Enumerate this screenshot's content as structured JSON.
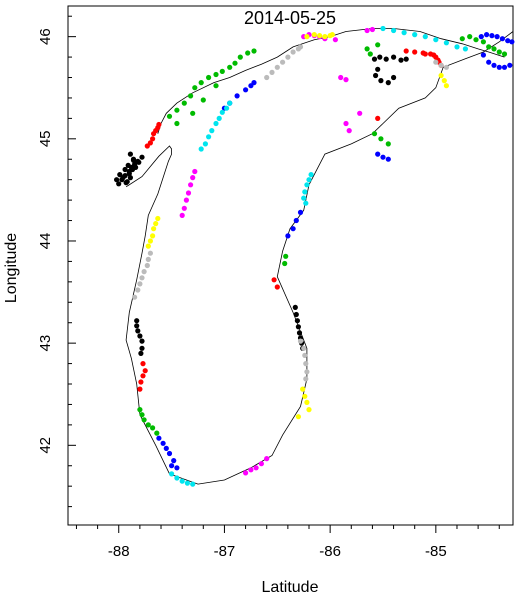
{
  "chart_data": {
    "type": "scatter",
    "title": "2014-05-25",
    "xlabel": "Latitude",
    "ylabel": "Longitude",
    "xlim": [
      -88.48,
      -84.27
    ],
    "ylim": [
      41.22,
      46.3
    ],
    "x_ticks": [
      -88,
      -87,
      -86,
      -85
    ],
    "y_ticks": [
      42,
      43,
      44,
      45,
      46
    ],
    "x_tick_labels": [
      "-88",
      "-87",
      "-86",
      "-85"
    ],
    "y_tick_labels": [
      "42",
      "43",
      "44",
      "45",
      "46"
    ],
    "grid": false,
    "legend": "none",
    "shoreline_color": "#000000",
    "shoreline": [
      [
        -87.93,
        44.53
      ],
      [
        -87.78,
        44.63
      ],
      [
        -87.62,
        44.83
      ],
      [
        -87.52,
        44.93
      ],
      [
        -87.5,
        44.9
      ],
      [
        -87.5,
        44.85
      ],
      [
        -87.53,
        44.78
      ],
      [
        -87.58,
        44.62
      ],
      [
        -87.63,
        44.46
      ],
      [
        -87.72,
        44.25
      ],
      [
        -87.75,
        44.05
      ],
      [
        -87.78,
        43.88
      ],
      [
        -87.83,
        43.62
      ],
      [
        -87.9,
        43.3
      ],
      [
        -87.93,
        43.03
      ],
      [
        -87.88,
        42.85
      ],
      [
        -87.83,
        42.6
      ],
      [
        -87.8,
        42.3
      ],
      [
        -87.65,
        42.0
      ],
      [
        -87.52,
        41.72
      ],
      [
        -87.25,
        41.62
      ],
      [
        -87.0,
        41.66
      ],
      [
        -86.75,
        41.78
      ],
      [
        -86.55,
        41.9
      ],
      [
        -86.45,
        42.1
      ],
      [
        -86.28,
        42.38
      ],
      [
        -86.22,
        42.65
      ],
      [
        -86.22,
        42.95
      ],
      [
        -86.35,
        43.3
      ],
      [
        -86.5,
        43.65
      ],
      [
        -86.45,
        43.9
      ],
      [
        -86.38,
        44.12
      ],
      [
        -86.25,
        44.3
      ],
      [
        -86.2,
        44.55
      ],
      [
        -86.05,
        44.85
      ],
      [
        -85.8,
        44.95
      ],
      [
        -85.6,
        45.05
      ],
      [
        -85.5,
        45.15
      ],
      [
        -85.35,
        45.3
      ],
      [
        -85.1,
        45.4
      ],
      [
        -85.0,
        45.5
      ],
      [
        -84.93,
        45.7
      ],
      [
        -84.73,
        45.78
      ],
      [
        -84.55,
        45.85
      ],
      [
        -84.4,
        45.95
      ],
      [
        -84.27,
        46.05
      ]
    ],
    "shoreline_north": [
      [
        -87.63,
        45.05
      ],
      [
        -87.6,
        45.15
      ],
      [
        -87.55,
        45.25
      ],
      [
        -87.45,
        45.35
      ],
      [
        -87.3,
        45.45
      ],
      [
        -87.1,
        45.55
      ],
      [
        -86.95,
        45.6
      ],
      [
        -86.8,
        45.67
      ],
      [
        -86.65,
        45.73
      ],
      [
        -86.5,
        45.8
      ],
      [
        -86.35,
        45.9
      ],
      [
        -86.15,
        45.97
      ],
      [
        -86.0,
        46.0
      ],
      [
        -85.85,
        46.05
      ],
      [
        -85.6,
        46.08
      ],
      [
        -85.4,
        46.08
      ],
      [
        -85.15,
        46.05
      ],
      [
        -84.95,
        45.98
      ],
      [
        -84.75,
        45.93
      ],
      [
        -84.6,
        45.88
      ],
      [
        -84.5,
        45.85
      ],
      [
        -84.35,
        45.8
      ]
    ],
    "series": [
      {
        "color": "#000000",
        "x": [
          -88.0,
          -87.97,
          -87.94,
          -87.9,
          -87.88,
          -87.85,
          -87.92,
          -87.96,
          -88.02,
          -87.9,
          -87.87,
          -87.82,
          -87.94,
          -87.99,
          -87.91,
          -87.86,
          -87.78,
          -87.81,
          -87.84,
          -87.89,
          -87.93,
          -87.89,
          -87.86,
          -87.83,
          -87.83,
          -87.82,
          -87.8,
          -87.78,
          -87.78,
          -87.79,
          -86.33,
          -86.32,
          -86.31,
          -86.3,
          -86.29,
          -86.28,
          -86.27,
          -86.26,
          -85.58,
          -85.53,
          -85.47,
          -85.4,
          -85.33,
          -85.28,
          -85.55,
          -85.57,
          -85.52,
          -85.45,
          -85.4
        ],
        "y": [
          44.56,
          44.6,
          44.64,
          44.68,
          44.72,
          44.75,
          44.58,
          44.62,
          44.6,
          44.66,
          44.7,
          44.78,
          44.7,
          44.65,
          44.74,
          44.8,
          44.82,
          44.77,
          44.72,
          44.62,
          44.57,
          44.85,
          44.79,
          43.22,
          43.17,
          43.12,
          43.07,
          43.02,
          42.95,
          42.9,
          43.35,
          43.28,
          43.22,
          43.16,
          43.1,
          43.05,
          43.0,
          42.95,
          45.78,
          45.8,
          45.78,
          45.8,
          45.77,
          45.78,
          45.68,
          45.62,
          45.57,
          45.55,
          45.6
        ]
      },
      {
        "color": "#ff0000",
        "x": [
          -87.73,
          -87.7,
          -87.68,
          -87.67,
          -87.65,
          -87.63,
          -87.62,
          -87.8,
          -87.79,
          -87.77,
          -87.75,
          -87.77,
          -86.53,
          -86.5,
          -85.28,
          -85.2,
          -85.12,
          -85.05,
          -85.0,
          -84.98,
          -84.95,
          -84.97,
          -85.02,
          -85.1,
          -85.55
        ],
        "y": [
          44.93,
          44.96,
          45.0,
          45.05,
          45.08,
          45.11,
          45.14,
          42.55,
          42.62,
          42.68,
          42.73,
          42.8,
          43.62,
          43.55,
          45.86,
          45.85,
          45.84,
          45.83,
          45.8,
          45.77,
          45.72,
          45.75,
          45.82,
          45.83,
          45.2
        ]
      },
      {
        "color": "#00bb00",
        "x": [
          -87.52,
          -87.45,
          -87.38,
          -87.32,
          -87.28,
          -87.22,
          -87.15,
          -87.08,
          -87.02,
          -86.95,
          -86.9,
          -86.85,
          -86.78,
          -86.72,
          -87.45,
          -87.3,
          -87.2,
          -87.08,
          -87.8,
          -87.78,
          -87.76,
          -87.72,
          -87.68,
          -87.64,
          -86.42,
          -86.43,
          -85.58,
          -85.52,
          -85.45,
          -84.75,
          -84.68,
          -84.62,
          -84.55,
          -84.5,
          -84.45,
          -84.4,
          -84.35,
          -85.65,
          -85.55,
          -85.62
        ],
        "y": [
          45.22,
          45.28,
          45.35,
          45.42,
          45.5,
          45.55,
          45.6,
          45.63,
          45.66,
          45.7,
          45.74,
          45.8,
          45.84,
          45.86,
          45.15,
          45.25,
          45.38,
          45.52,
          42.35,
          42.3,
          42.25,
          42.2,
          42.17,
          42.12,
          43.85,
          43.78,
          45.05,
          45.0,
          44.95,
          45.98,
          46.0,
          45.97,
          45.95,
          45.9,
          45.88,
          45.85,
          45.83,
          45.88,
          45.92,
          45.83
        ]
      },
      {
        "color": "#0000ff",
        "x": [
          -87.0,
          -86.95,
          -86.88,
          -86.8,
          -86.75,
          -86.72,
          -87.62,
          -87.58,
          -87.55,
          -87.52,
          -87.48,
          -87.45,
          -87.5,
          -86.28,
          -86.32,
          -86.35,
          -86.4,
          -85.55,
          -85.5,
          -85.45,
          -84.57,
          -84.52,
          -84.47,
          -84.42,
          -84.37,
          -84.32,
          -84.28,
          -84.55,
          -84.5,
          -84.45,
          -84.4,
          -84.35,
          -84.3
        ],
        "y": [
          45.3,
          45.35,
          45.42,
          45.48,
          45.52,
          45.55,
          42.07,
          42.02,
          41.97,
          41.92,
          41.85,
          41.78,
          41.8,
          44.28,
          44.2,
          44.12,
          44.05,
          44.85,
          44.82,
          44.8,
          46.0,
          46.02,
          46.01,
          46.0,
          45.98,
          45.96,
          45.95,
          45.82,
          45.75,
          45.72,
          45.7,
          45.7,
          45.72
        ]
      },
      {
        "color": "#ff00ff",
        "x": [
          -87.4,
          -87.38,
          -87.36,
          -87.34,
          -87.32,
          -87.3,
          -87.28,
          -86.25,
          -86.2,
          -86.15,
          -86.1,
          -86.05,
          -85.95,
          -85.9,
          -85.85,
          -85.72,
          -85.65,
          -85.6,
          -85.85,
          -85.82,
          -86.6,
          -86.65,
          -86.7,
          -86.75,
          -86.8
        ],
        "y": [
          44.25,
          44.32,
          44.4,
          44.47,
          44.55,
          44.62,
          44.68,
          46.0,
          46.02,
          46.01,
          46.0,
          45.98,
          45.97,
          45.6,
          45.58,
          45.25,
          46.06,
          46.07,
          45.15,
          45.08,
          41.87,
          41.82,
          41.78,
          41.76,
          41.73
        ]
      },
      {
        "color": "#00e5ee",
        "x": [
          -87.22,
          -87.18,
          -87.15,
          -87.12,
          -87.08,
          -87.05,
          -87.02,
          -86.98,
          -86.95,
          -87.5,
          -87.45,
          -87.4,
          -87.35,
          -87.3,
          -85.5,
          -85.4,
          -85.3,
          -85.2,
          -85.1,
          -85.0,
          -84.9,
          -84.8,
          -84.72,
          -86.22,
          -86.24,
          -86.25,
          -86.23,
          -86.2,
          -86.18
        ],
        "y": [
          44.9,
          44.95,
          45.02,
          45.08,
          45.15,
          45.2,
          45.26,
          45.3,
          45.35,
          41.72,
          41.68,
          41.65,
          41.63,
          41.62,
          46.08,
          46.06,
          46.04,
          46.02,
          46.0,
          45.97,
          45.94,
          45.9,
          45.88,
          44.55,
          44.48,
          44.42,
          44.37,
          44.6,
          44.65
        ]
      },
      {
        "color": "#ffff00",
        "x": [
          -87.72,
          -87.7,
          -87.68,
          -87.67,
          -87.65,
          -87.63,
          -86.26,
          -86.24,
          -86.22,
          -86.2,
          -86.3,
          -86.22,
          -86.15,
          -86.1,
          -86.05,
          -86.0,
          -85.98,
          -84.95,
          -84.92,
          -84.9
        ],
        "y": [
          43.95,
          44.0,
          44.05,
          44.12,
          44.17,
          44.22,
          42.55,
          42.48,
          42.42,
          42.35,
          42.28,
          46.0,
          46.02,
          46.01,
          46.0,
          46.01,
          46.02,
          45.62,
          45.57,
          45.52
        ]
      },
      {
        "color": "#bbbbbb",
        "x": [
          -87.85,
          -87.82,
          -87.8,
          -87.78,
          -87.76,
          -87.73,
          -87.72,
          -87.7,
          -86.28,
          -86.25,
          -86.24,
          -86.23,
          -86.22,
          -86.23,
          -86.6,
          -86.55,
          -86.5,
          -86.45,
          -86.4,
          -86.35,
          -86.3,
          -86.28,
          -85.0,
          -84.95,
          -84.9
        ],
        "y": [
          43.45,
          43.52,
          43.58,
          43.64,
          43.7,
          43.76,
          43.82,
          43.88,
          43.02,
          42.95,
          42.88,
          42.8,
          42.72,
          42.65,
          45.6,
          45.65,
          45.7,
          45.75,
          45.8,
          45.85,
          45.88,
          45.9,
          45.75,
          45.72,
          45.7
        ]
      }
    ]
  }
}
